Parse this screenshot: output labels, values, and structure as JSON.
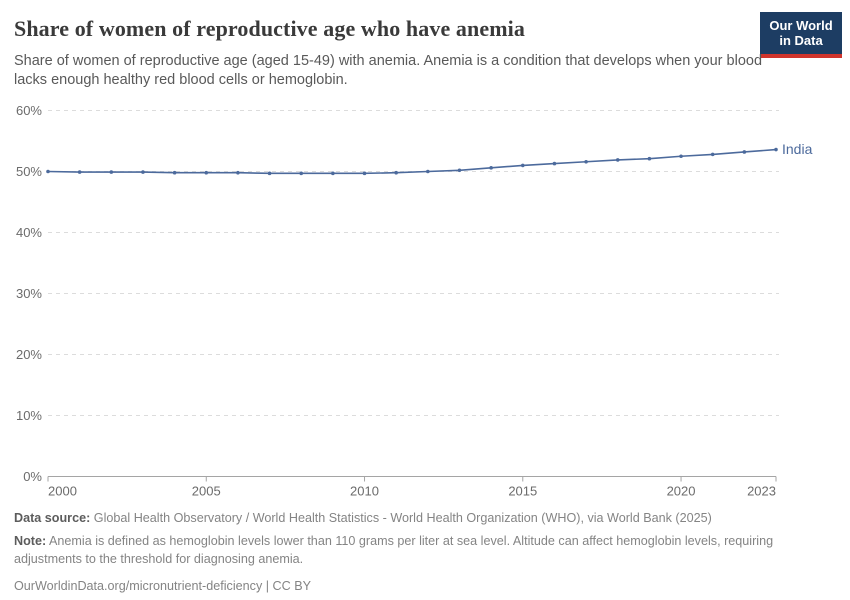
{
  "header": {
    "title": "Share of women of reproductive age who have anemia",
    "subtitle": "Share of women of reproductive age (aged 15-49) with anemia. Anemia is a condition that develops when your blood lacks enough healthy red blood cells or hemoglobin.",
    "logo": {
      "line1": "Our World",
      "line2": "in Data",
      "bg_color": "#1d3d63",
      "stripe_color": "#d0342c"
    }
  },
  "chart_data": {
    "type": "line",
    "title": "Share of women of reproductive age who have anemia",
    "xlabel": "",
    "ylabel": "",
    "xlim": [
      2000,
      2023
    ],
    "ylim": [
      0,
      60
    ],
    "xticks": [
      2000,
      2005,
      2010,
      2015,
      2020,
      2023
    ],
    "yticks": [
      0,
      10,
      20,
      30,
      40,
      50,
      60
    ],
    "ytick_suffix": "%",
    "grid": "horizontal-dashed",
    "legend_position": "end-of-line-label",
    "series": [
      {
        "name": "India",
        "color": "#4c6a9c",
        "x": [
          2000,
          2001,
          2002,
          2003,
          2004,
          2005,
          2006,
          2007,
          2008,
          2009,
          2010,
          2011,
          2012,
          2013,
          2014,
          2015,
          2016,
          2017,
          2018,
          2019,
          2020,
          2021,
          2022,
          2023
        ],
        "values": [
          50.0,
          49.9,
          49.9,
          49.9,
          49.8,
          49.8,
          49.8,
          49.7,
          49.7,
          49.7,
          49.7,
          49.8,
          50.0,
          50.2,
          50.6,
          51.0,
          51.3,
          51.6,
          51.9,
          52.1,
          52.5,
          52.8,
          53.2,
          53.6
        ]
      }
    ]
  },
  "footer": {
    "data_source_label": "Data source:",
    "data_source": "Global Health Observatory / World Health Statistics - World Health Organization (WHO), via World Bank (2025)",
    "note_label": "Note:",
    "note": "Anemia is defined as hemoglobin levels lower than 110 grams per liter at sea level. Altitude can affect hemoglobin levels, requiring adjustments to the threshold for diagnosing anemia.",
    "link": "OurWorldinData.org/micronutrient-deficiency | CC BY"
  }
}
